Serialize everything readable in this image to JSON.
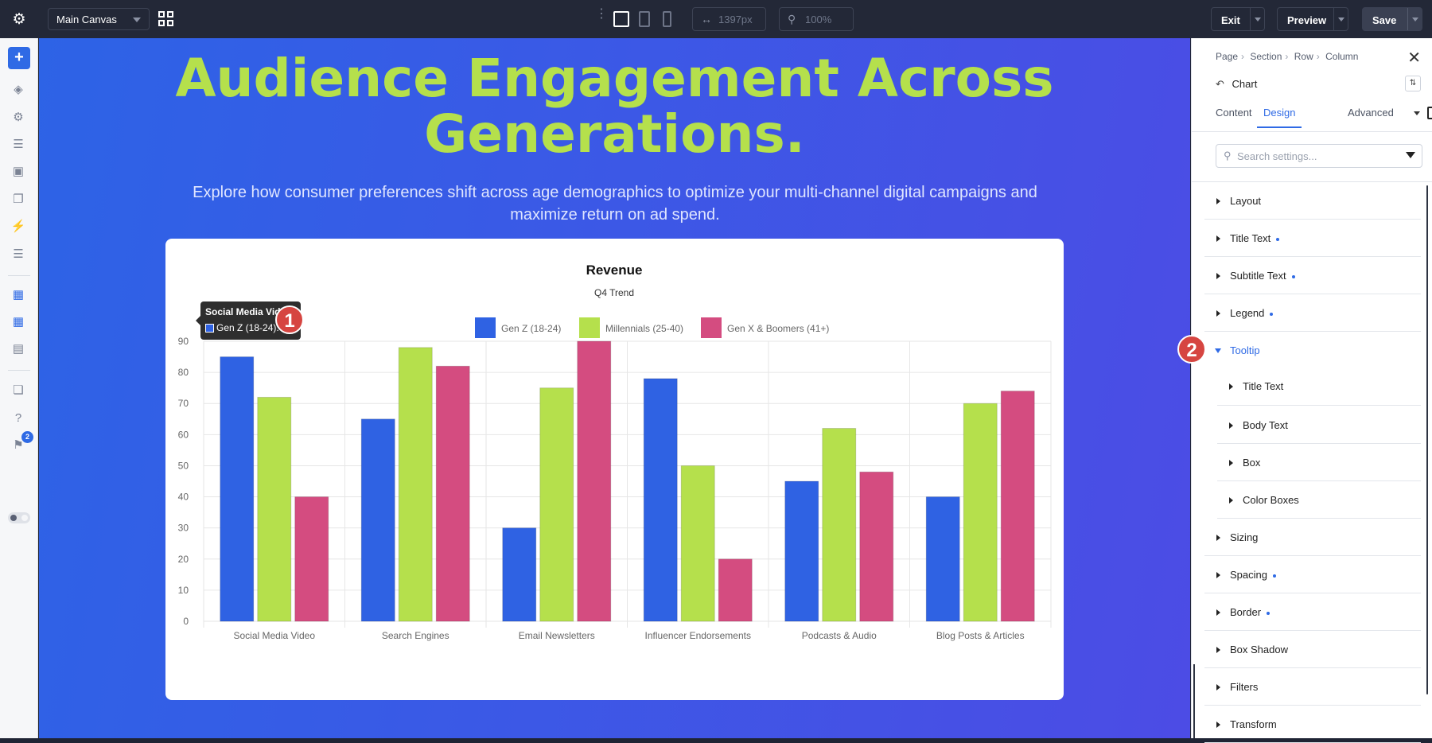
{
  "topbar": {
    "canvas_label": "Main Canvas",
    "width_value": "1397px",
    "zoom_value": "100%",
    "exit_label": "Exit",
    "preview_label": "Preview",
    "save_label": "Save"
  },
  "sidebar": {
    "notification_count": "2",
    "help_label": "?"
  },
  "hero": {
    "title_line1": "Audience Engagement Across",
    "title_line2": "Generations.",
    "subtitle": "Explore how consumer preferences shift across age demographics to optimize your multi-channel digital campaigns and maximize return on ad spend."
  },
  "chart_data": {
    "type": "bar",
    "title": "Revenue",
    "subtitle": "Q4 Trend",
    "categories": [
      "Social Media Video",
      "Search Engines",
      "Email Newsletters",
      "Influencer Endorsements",
      "Podcasts & Audio",
      "Blog Posts & Articles"
    ],
    "series": [
      {
        "name": "Gen Z (18-24)",
        "color": "#2f62e3",
        "values": [
          85,
          65,
          30,
          78,
          45,
          40
        ]
      },
      {
        "name": "Millennials (25-40)",
        "color": "#b5e04c",
        "values": [
          72,
          88,
          75,
          50,
          62,
          70
        ]
      },
      {
        "name": "Gen X & Boomers (41+)",
        "color": "#d44c80",
        "values": [
          40,
          82,
          90,
          20,
          48,
          74
        ]
      }
    ],
    "ylim": [
      0,
      90
    ],
    "yticks": [
      0,
      10,
      20,
      30,
      40,
      50,
      60,
      70,
      80,
      90
    ],
    "grid": true,
    "legend": "top-center"
  },
  "tooltip": {
    "title": "Social Media Video",
    "body": "Gen Z (18-24): 85"
  },
  "markers": {
    "one": "1",
    "two": "2"
  },
  "panel": {
    "breadcrumb": [
      "Page",
      "Section",
      "Row",
      "Column"
    ],
    "module_name": "Chart",
    "tabs": [
      "Content",
      "Design",
      "Advanced"
    ],
    "search_placeholder": "Search settings...",
    "groups": [
      {
        "label": "Layout"
      },
      {
        "label": "Title Text"
      },
      {
        "label": "Subtitle Text"
      },
      {
        "label": "Legend"
      },
      {
        "label": "Tooltip"
      },
      {
        "label": "Title Text"
      },
      {
        "label": "Body Text"
      },
      {
        "label": "Box"
      },
      {
        "label": "Color Boxes"
      },
      {
        "label": "Sizing"
      },
      {
        "label": "Spacing"
      },
      {
        "label": "Border"
      },
      {
        "label": "Box Shadow"
      },
      {
        "label": "Filters"
      },
      {
        "label": "Transform"
      }
    ]
  }
}
